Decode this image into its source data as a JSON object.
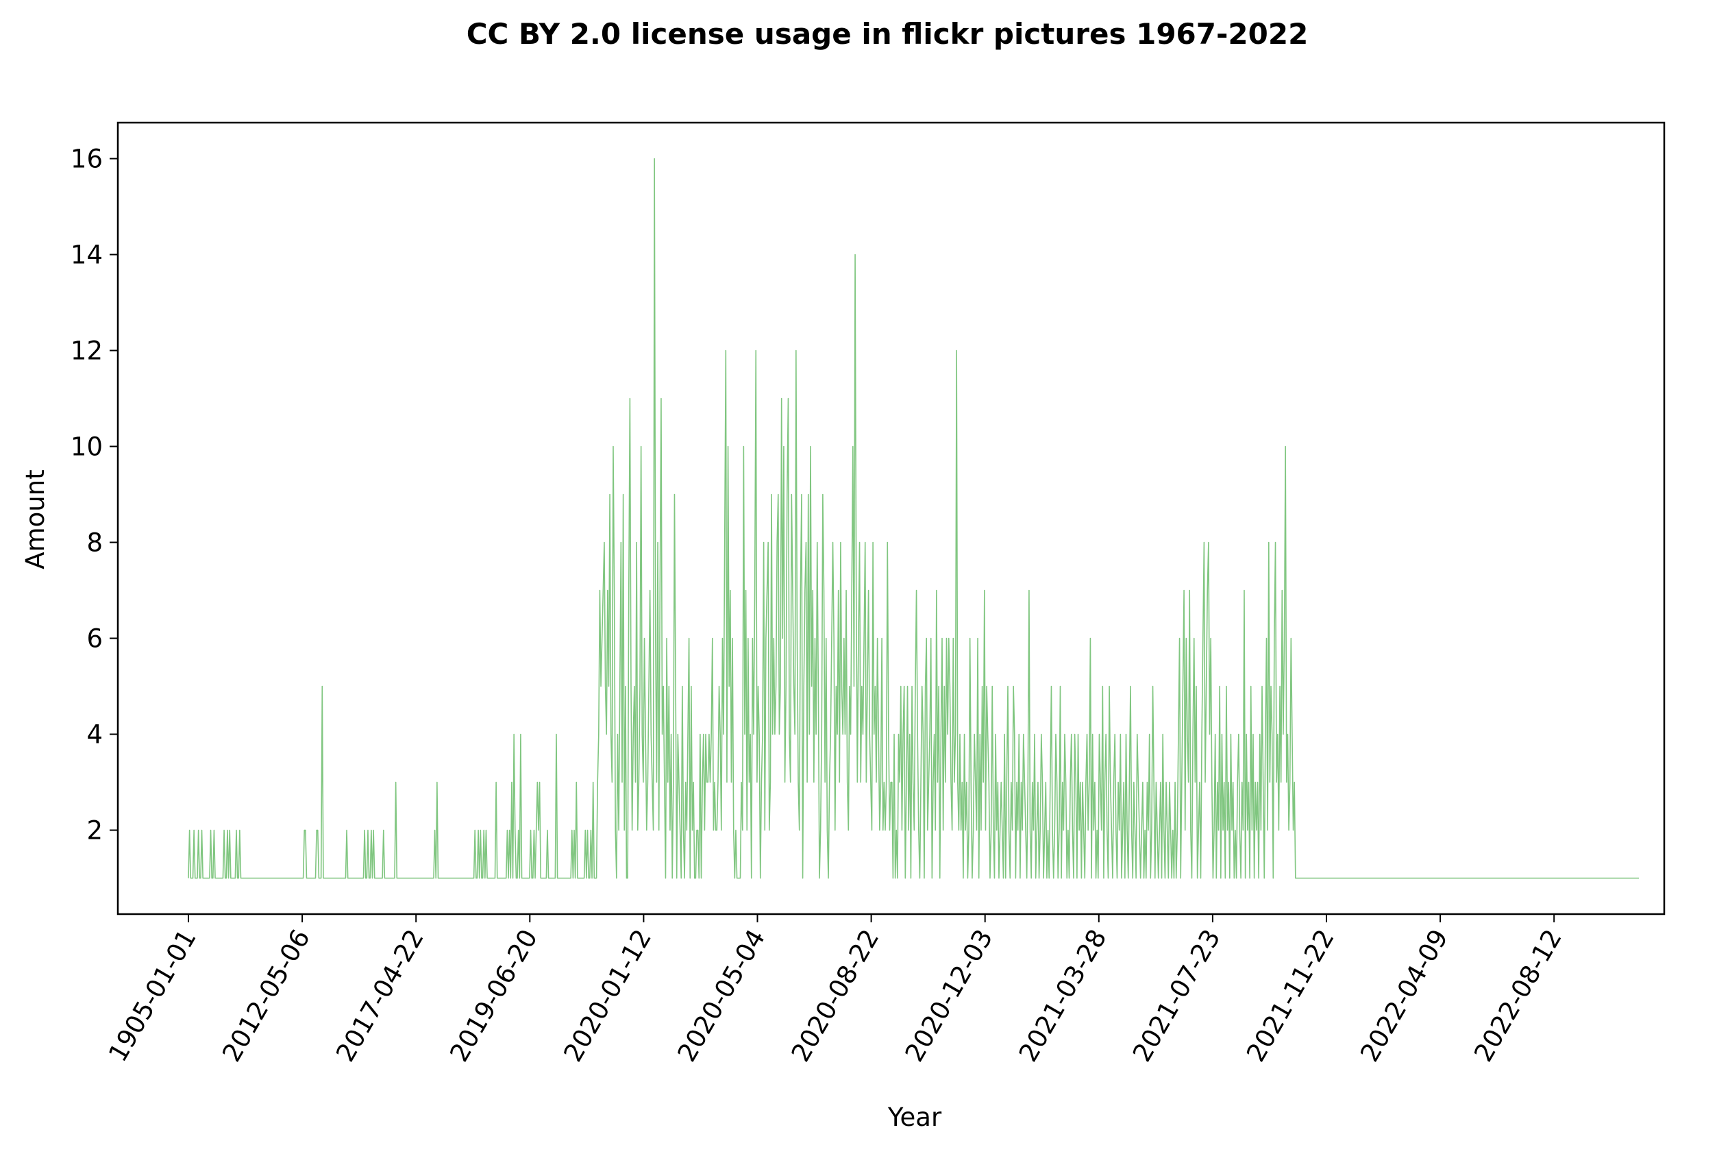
{
  "chart_data": {
    "type": "line",
    "title": "CC BY 2.0 license usage in flickr pictures 1967-2022",
    "xlabel": "Year",
    "ylabel": "Amount",
    "x_axis_kind": "categorical-sequence",
    "x_tick_labels": [
      "1905-01-01",
      "2012-05-06",
      "2017-04-22",
      "2019-06-20",
      "2020-01-12",
      "2020-05-04",
      "2020-08-22",
      "2020-12-03",
      "2021-03-28",
      "2021-07-23",
      "2021-11-22",
      "2022-04-09",
      "2022-08-12"
    ],
    "y_ticks": [
      2,
      4,
      6,
      8,
      10,
      12,
      14,
      16
    ],
    "ylim": [
      0.25,
      16.75
    ],
    "grid": false,
    "line_color": "#2ca02c",
    "line_opacity": 0.6,
    "point_count": 1278,
    "series": [
      {
        "values": [
          1,
          2,
          1,
          1,
          1,
          2,
          1,
          1,
          1,
          2,
          1,
          1,
          2,
          1,
          1,
          1,
          1,
          1,
          1,
          1,
          2,
          1,
          1,
          2,
          1,
          1,
          1,
          1,
          1,
          1,
          1,
          1,
          2,
          1,
          1,
          2,
          1,
          2,
          1,
          1,
          1,
          1,
          1,
          2,
          1,
          1,
          2,
          1,
          1,
          1,
          1,
          1,
          1,
          1,
          1,
          1,
          1,
          1,
          1,
          1,
          1,
          1,
          1,
          1,
          1,
          1,
          1,
          1,
          1,
          1,
          1,
          1,
          1,
          1,
          1,
          1,
          1,
          1,
          1,
          1,
          1,
          1,
          1,
          1,
          1,
          1,
          1,
          1,
          1,
          1,
          1,
          1,
          1,
          1,
          1,
          1,
          1,
          1,
          1,
          1,
          1,
          1,
          1,
          1,
          2,
          2,
          1,
          1,
          1,
          1,
          1,
          1,
          1,
          1,
          1,
          2,
          2,
          1,
          1,
          1,
          5,
          1,
          1,
          1,
          1,
          1,
          1,
          1,
          1,
          1,
          1,
          1,
          1,
          1,
          1,
          1,
          1,
          1,
          1,
          1,
          1,
          1,
          2,
          1,
          1,
          1,
          1,
          1,
          1,
          1,
          1,
          1,
          1,
          1,
          1,
          1,
          1,
          1,
          2,
          1,
          1,
          2,
          1,
          1,
          2,
          1,
          2,
          1,
          1,
          1,
          1,
          1,
          1,
          1,
          1,
          2,
          1,
          1,
          1,
          1,
          1,
          1,
          1,
          1,
          1,
          1,
          3,
          1,
          1,
          1,
          1,
          1,
          1,
          1,
          1,
          1,
          1,
          1,
          1,
          1,
          1,
          1,
          1,
          1,
          1,
          1,
          1,
          1,
          1,
          1,
          1,
          1,
          1,
          1,
          1,
          1,
          1,
          1,
          1,
          1,
          1,
          2,
          1,
          3,
          1,
          1,
          1,
          1,
          1,
          1,
          1,
          1,
          1,
          1,
          1,
          1,
          1,
          1,
          1,
          1,
          1,
          1,
          1,
          1,
          1,
          1,
          1,
          1,
          1,
          1,
          1,
          1,
          1,
          1,
          1,
          1,
          1,
          2,
          1,
          1,
          2,
          1,
          2,
          1,
          1,
          2,
          1,
          2,
          1,
          1,
          1,
          1,
          1,
          1,
          1,
          1,
          3,
          1,
          1,
          1,
          1,
          1,
          1,
          1,
          1,
          1,
          2,
          1,
          2,
          1,
          3,
          1,
          4,
          2,
          1,
          1,
          2,
          1,
          4,
          1,
          1,
          1,
          1,
          1,
          1,
          1,
          1,
          2,
          1,
          1,
          2,
          1,
          2,
          3,
          2,
          3,
          1,
          1,
          1,
          1,
          1,
          1,
          2,
          1,
          1,
          1,
          1,
          1,
          1,
          1,
          4,
          1,
          1,
          1,
          1,
          1,
          1,
          1,
          1,
          1,
          1,
          1,
          1,
          1,
          2,
          1,
          2,
          1,
          3,
          1,
          1,
          1,
          1,
          1,
          1,
          1,
          2,
          1,
          2,
          1,
          1,
          2,
          1,
          3,
          1,
          1,
          1,
          3,
          4,
          7,
          5,
          6,
          7,
          8,
          5,
          4,
          7,
          5,
          9,
          4,
          3,
          10,
          7,
          2,
          1,
          4,
          2,
          5,
          8,
          3,
          9,
          2,
          5,
          1,
          1,
          7,
          11,
          5,
          2,
          4,
          5,
          3,
          8,
          2,
          3,
          5,
          10,
          4,
          3,
          6,
          4,
          2,
          3,
          5,
          7,
          4,
          3,
          2,
          16,
          6,
          3,
          8,
          2,
          7,
          11,
          4,
          5,
          3,
          1,
          6,
          3,
          5,
          2,
          4,
          1,
          3,
          9,
          5,
          1,
          4,
          3,
          2,
          1,
          5,
          2,
          1,
          3,
          2,
          4,
          6,
          1,
          5,
          2,
          3,
          1,
          1,
          2,
          2,
          1,
          4,
          1,
          3,
          4,
          2,
          4,
          3,
          3,
          4,
          3,
          4,
          6,
          2,
          3,
          2,
          2,
          3,
          5,
          4,
          2,
          6,
          4,
          8,
          12,
          3,
          10,
          5,
          7,
          3,
          6,
          2,
          1,
          2,
          1,
          1,
          1,
          1,
          3,
          2,
          10,
          4,
          7,
          2,
          6,
          3,
          4,
          1,
          6,
          4,
          7,
          12,
          3,
          5,
          4,
          1,
          3,
          4,
          8,
          2,
          6,
          7,
          8,
          2,
          3,
          9,
          4,
          6,
          4,
          5,
          8,
          9,
          4,
          5,
          11,
          6,
          10,
          3,
          5,
          9,
          11,
          4,
          3,
          9,
          7,
          5,
          4,
          12,
          6,
          3,
          2,
          7,
          9,
          1,
          5,
          7,
          8,
          3,
          9,
          4,
          10,
          5,
          7,
          3,
          6,
          4,
          8,
          5,
          1,
          2,
          4,
          9,
          7,
          3,
          6,
          2,
          1,
          3,
          4,
          6,
          8,
          6,
          2,
          5,
          4,
          7,
          3,
          8,
          5,
          4,
          6,
          4,
          7,
          3,
          2,
          5,
          4,
          7,
          10,
          5,
          14,
          7,
          3,
          6,
          8,
          3,
          5,
          4,
          6,
          8,
          3,
          5,
          7,
          4,
          3,
          2,
          8,
          4,
          5,
          3,
          6,
          4,
          2,
          3,
          6,
          2,
          3,
          2,
          3,
          8,
          4,
          2,
          3,
          3,
          1,
          4,
          1,
          2,
          1,
          4,
          3,
          5,
          2,
          4,
          5,
          1,
          3,
          5,
          2,
          4,
          1,
          5,
          3,
          2,
          5,
          7,
          4,
          2,
          1,
          3,
          5,
          4,
          1,
          5,
          6,
          2,
          3,
          4,
          6,
          1,
          3,
          4,
          2,
          7,
          3,
          5,
          1,
          4,
          6,
          2,
          5,
          3,
          6,
          4,
          6,
          5,
          3,
          2,
          6,
          3,
          4,
          12,
          3,
          2,
          4,
          2,
          3,
          1,
          4,
          2,
          3,
          1,
          2,
          6,
          3,
          1,
          2,
          4,
          3,
          2,
          6,
          1,
          4,
          2,
          5,
          3,
          7,
          2,
          5,
          4,
          3,
          1,
          2,
          5,
          2,
          1,
          4,
          2,
          3,
          1,
          2,
          3,
          2,
          1,
          4,
          1,
          3,
          5,
          2,
          1,
          3,
          2,
          5,
          4,
          1,
          3,
          2,
          4,
          1,
          3,
          2,
          4,
          3,
          2,
          1,
          3,
          7,
          2,
          1,
          3,
          2,
          4,
          1,
          2,
          3,
          1,
          2,
          4,
          3,
          1,
          2,
          3,
          1,
          2,
          1,
          3,
          5,
          2,
          1,
          2,
          4,
          3,
          1,
          2,
          5,
          1,
          3,
          2,
          4,
          3,
          1,
          2,
          1,
          3,
          4,
          2,
          1,
          4,
          3,
          1,
          4,
          2,
          3,
          1,
          3,
          2,
          1,
          3,
          4,
          2,
          3,
          6,
          1,
          4,
          2,
          3,
          1,
          2,
          1,
          4,
          3,
          2,
          5,
          1,
          3,
          4,
          2,
          1,
          5,
          3,
          2,
          1,
          3,
          4,
          2,
          1,
          3,
          2,
          4,
          1,
          2,
          3,
          1,
          4,
          2,
          1,
          3,
          5,
          2,
          1,
          3,
          2,
          1,
          4,
          3,
          2,
          1,
          2,
          3,
          1,
          2,
          1,
          3,
          2,
          4,
          1,
          2,
          5,
          3,
          1,
          3,
          2,
          1,
          2,
          3,
          1,
          4,
          2,
          1,
          3,
          2,
          1,
          3,
          2,
          1,
          2,
          1,
          3,
          1,
          2,
          4,
          6,
          1,
          3,
          5,
          7,
          2,
          6,
          4,
          3,
          7,
          2,
          1,
          4,
          6,
          3,
          5,
          1,
          2,
          3,
          1,
          4,
          6,
          8,
          3,
          5,
          7,
          8,
          4,
          6,
          3,
          1,
          2,
          4,
          1,
          3,
          2,
          5,
          1,
          4,
          2,
          3,
          1,
          5,
          2,
          3,
          1,
          4,
          2,
          3,
          1,
          2,
          1,
          3,
          4,
          2,
          1,
          3,
          2,
          7,
          1,
          4,
          2,
          3,
          1,
          5,
          2,
          4,
          1,
          3,
          2,
          3,
          1,
          4,
          2,
          5,
          3,
          1,
          4,
          6,
          2,
          8,
          3,
          5,
          4,
          1,
          6,
          8,
          3,
          4,
          2,
          5,
          3,
          7,
          4,
          6,
          10,
          3,
          4,
          2,
          3,
          6,
          4,
          2,
          3,
          1,
          1,
          1,
          1,
          1,
          1,
          1,
          1,
          1,
          1,
          1,
          1,
          1,
          1,
          1,
          1,
          1,
          1,
          1,
          1,
          1,
          1,
          1,
          1,
          1,
          1,
          1,
          1,
          1,
          1,
          1,
          1,
          1,
          1,
          1,
          1,
          1,
          1,
          1,
          1,
          1,
          1,
          1,
          1,
          1,
          1,
          1,
          1,
          1,
          1,
          1,
          1,
          1,
          1,
          1,
          1,
          1,
          1,
          1,
          1,
          1,
          1,
          1,
          1,
          1,
          1,
          1,
          1,
          1,
          1,
          1,
          1,
          1,
          1,
          1,
          1,
          1,
          1,
          1,
          1,
          1,
          1,
          1,
          1,
          1,
          1,
          1,
          1,
          1,
          1,
          1,
          1,
          1,
          1,
          1,
          1,
          1,
          1,
          1,
          1,
          1,
          1,
          1,
          1,
          1,
          1,
          1,
          1,
          1,
          1,
          1,
          1,
          1,
          1,
          1,
          1,
          1,
          1,
          1,
          1,
          1,
          1,
          1,
          1,
          1,
          1,
          1,
          1,
          1,
          1,
          1,
          1,
          1,
          1,
          1,
          1,
          1,
          1,
          1,
          1,
          1,
          1,
          1,
          1,
          1,
          1,
          1,
          1,
          1,
          1,
          1,
          1,
          1,
          1,
          1,
          1,
          1,
          1,
          1,
          1,
          1,
          1,
          1,
          1,
          1,
          1,
          1,
          1,
          1,
          1,
          1,
          1,
          1,
          1,
          1,
          1,
          1,
          1,
          1,
          1,
          1,
          1,
          1,
          1,
          1,
          1,
          1,
          1,
          1,
          1,
          1,
          1,
          1,
          1,
          1,
          1,
          1,
          1,
          1,
          1,
          1,
          1,
          1,
          1,
          1,
          1,
          1,
          1,
          1,
          1,
          1,
          1,
          1,
          1,
          1,
          1,
          1,
          1,
          1,
          1,
          1,
          1,
          1,
          1,
          1,
          1,
          1,
          1,
          1,
          1,
          1,
          1,
          1,
          1,
          1,
          1,
          1,
          1,
          1,
          1,
          1,
          1,
          1,
          1,
          1,
          1,
          1,
          1,
          1,
          1,
          1,
          1,
          1,
          1,
          1,
          1,
          1,
          1,
          1,
          1,
          1,
          1,
          1,
          1,
          1,
          1,
          1,
          1,
          1,
          1,
          1,
          1,
          1,
          1,
          1,
          1,
          1,
          1,
          1,
          1,
          1,
          1,
          1,
          1,
          1,
          1,
          1,
          1,
          1,
          1,
          1,
          1,
          1,
          1,
          1,
          1,
          1,
          1,
          1,
          1,
          1,
          1,
          1,
          1,
          1,
          1,
          1,
          1,
          1
        ]
      }
    ]
  }
}
